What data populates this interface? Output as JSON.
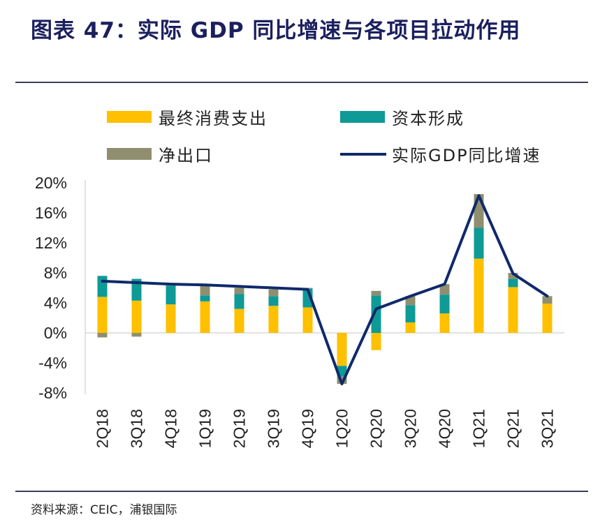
{
  "figure": {
    "title": "图表 47：实际 GDP 同比增速与各项目拉动作用",
    "source": "资料来源：CEIC，浦银国际"
  },
  "colors": {
    "consumption": "#ffc000",
    "capital": "#0e9a96",
    "netexport": "#8f8f70",
    "gdp": "#0f2a6b",
    "axis": "#d9d9d9",
    "text": "#222222"
  },
  "chart_data": {
    "type": "bar",
    "stacked": true,
    "title": "",
    "xlabel": "",
    "ylabel": "",
    "ylim": [
      -8,
      20
    ],
    "yticks": [
      -8,
      -4,
      0,
      4,
      8,
      12,
      16,
      20
    ],
    "ytick_labels": [
      "-8%",
      "-4%",
      "0%",
      "4%",
      "8%",
      "12%",
      "16%",
      "20%"
    ],
    "categories": [
      "2Q18",
      "3Q18",
      "4Q18",
      "1Q19",
      "2Q19",
      "3Q19",
      "4Q19",
      "1Q20",
      "2Q20",
      "3Q20",
      "4Q20",
      "1Q21",
      "2Q21",
      "3Q21"
    ],
    "series": [
      {
        "name": "最终消费支出",
        "type": "bar",
        "color_key": "consumption",
        "values": [
          4.8,
          4.3,
          3.8,
          4.2,
          3.2,
          3.6,
          3.4,
          -4.4,
          -2.3,
          1.4,
          2.6,
          9.9,
          6.1,
          3.9
        ]
      },
      {
        "name": "资本形成",
        "type": "bar",
        "color_key": "capital",
        "values": [
          2.8,
          2.9,
          2.5,
          0.8,
          2.0,
          1.3,
          2.5,
          -1.4,
          5.0,
          2.3,
          2.5,
          4.1,
          1.1,
          0.0
        ]
      },
      {
        "name": "净出口",
        "type": "bar",
        "color_key": "netexport",
        "values": [
          -0.6,
          -0.5,
          0.2,
          1.3,
          0.8,
          0.9,
          0.1,
          -1.0,
          0.6,
          1.2,
          1.4,
          4.5,
          0.8,
          1.0
        ]
      },
      {
        "name": "实际GDP同比增速",
        "type": "line",
        "color_key": "gdp",
        "values": [
          6.9,
          6.7,
          6.5,
          6.4,
          6.2,
          6.0,
          5.8,
          -6.8,
          3.2,
          4.9,
          6.5,
          18.3,
          7.9,
          4.9
        ]
      }
    ],
    "legend_position": "top",
    "legend_order": [
      "最终消费支出",
      "资本形成",
      "净出口",
      "实际GDP同比增速"
    ]
  }
}
